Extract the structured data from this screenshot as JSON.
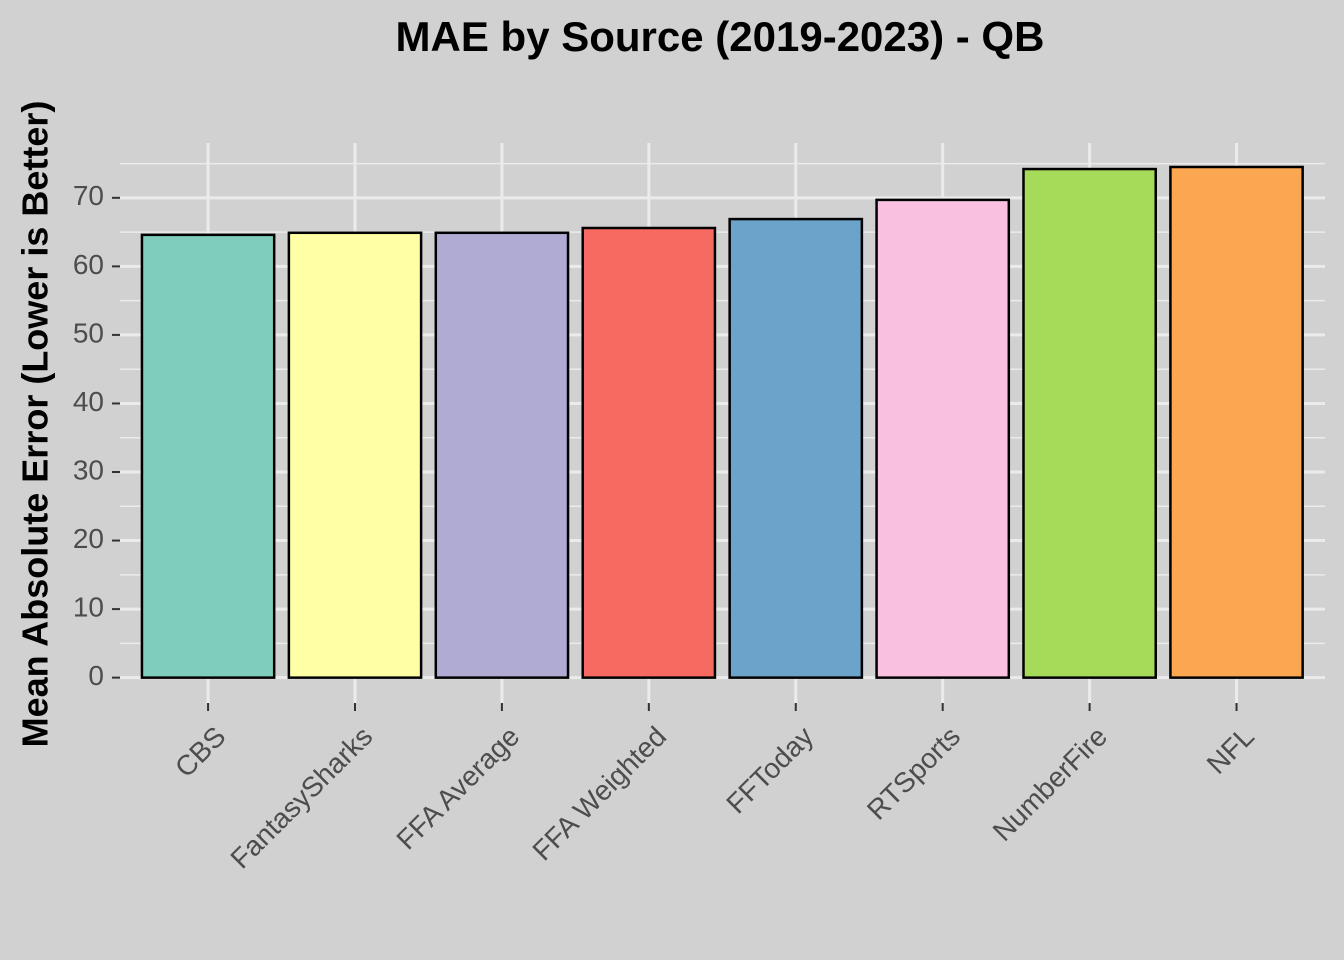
{
  "chart_data": {
    "type": "bar",
    "title": "MAE by Source (2019-2023) - QB",
    "y_label": "Mean Absolute Error (Lower is Better)",
    "categories": [
      "CBS",
      "FantasySharks",
      "FFA Average",
      "FFA Weighted",
      "FFToday",
      "RTSports",
      "NumberFire",
      "NFL"
    ],
    "values": [
      64.6,
      64.9,
      64.9,
      65.6,
      66.9,
      69.7,
      74.2,
      74.5
    ],
    "colors": [
      "#7fcdbb",
      "#ffffa6",
      "#b0abd3",
      "#f76a62",
      "#6ba3cb",
      "#f9c0e0",
      "#a6db5a",
      "#fba651"
    ],
    "ylim": [
      -3.7,
      78
    ],
    "yticks": [
      0,
      10,
      20,
      30,
      40,
      50,
      60,
      70
    ],
    "grid": true
  }
}
